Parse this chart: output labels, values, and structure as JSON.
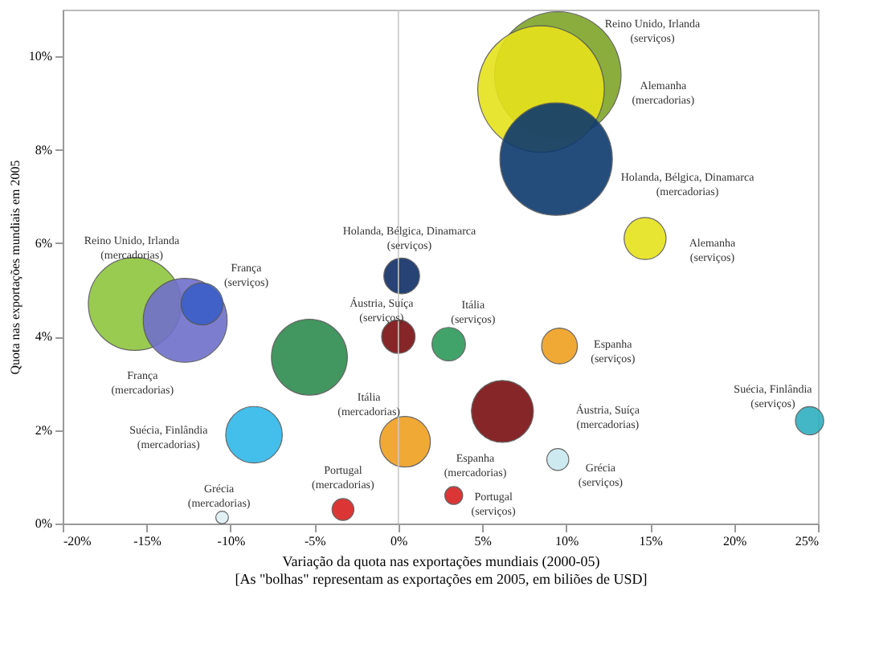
{
  "chart_data": {
    "type": "bubble",
    "xlabel": "Variação da quota nas exportações mundiais (2000-05)\n[As \"bolhas\" representam as exportações em 2005, em biliões de USD]",
    "ylabel": "Quota nas exportações mundiais em 2005",
    "xlim": [
      -20,
      25
    ],
    "ylim": [
      0,
      11
    ],
    "xticks": [
      {
        "value": -20,
        "label": "-20%"
      },
      {
        "value": -15,
        "label": "-15%"
      },
      {
        "value": -10,
        "label": "-10%"
      },
      {
        "value": -5,
        "label": "-5%"
      },
      {
        "value": 0,
        "label": "0%"
      },
      {
        "value": 5,
        "label": "5%"
      },
      {
        "value": 10,
        "label": "10%"
      },
      {
        "value": 15,
        "label": "15%"
      },
      {
        "value": 20,
        "label": "20%"
      },
      {
        "value": 25,
        "label": "25%"
      }
    ],
    "yticks": [
      {
        "value": 0,
        "label": "0%"
      },
      {
        "value": 2,
        "label": "2%"
      },
      {
        "value": 4,
        "label": "4%"
      },
      {
        "value": 6,
        "label": "6%"
      },
      {
        "value": 8,
        "label": "8%"
      },
      {
        "value": 10,
        "label": "10%"
      }
    ],
    "grid": false,
    "ref_lines": [
      {
        "axis": "x",
        "value": 0,
        "color": "#c8c8c8"
      }
    ],
    "x": [
      9.5,
      8.5,
      9.4,
      14.7,
      0.2,
      -15.7,
      -12.7,
      -11.7,
      -5.3,
      0.0,
      3.0,
      9.6,
      6.2,
      0.4,
      -8.6,
      24.5,
      9.5,
      3.3,
      -3.3,
      -10.5
    ],
    "values": [
      9.6,
      9.3,
      7.8,
      6.1,
      5.3,
      4.7,
      4.35,
      4.7,
      3.56,
      4.0,
      3.84,
      3.8,
      2.4,
      1.75,
      1.9,
      2.2,
      1.37,
      0.6,
      0.3,
      0.13
    ],
    "sizes": [
      1,
      1,
      0.79,
      0.11,
      0.08,
      0.54,
      0.44,
      0.11,
      0.36,
      0.07,
      0.07,
      0.08,
      0.24,
      0.16,
      0.2,
      0.05,
      0.03,
      0.02,
      0.03,
      0.01
    ],
    "colors": [
      "#7fa52a",
      "#e6e21c",
      "#0d3a6e",
      "#e6e21c",
      "#102e66",
      "#8ec63f",
      "#7070cc",
      "#3b5fc8",
      "#2e8b4e",
      "#7a0f12",
      "#2e9a5a",
      "#f0a020",
      "#7a0f12",
      "#f0a020",
      "#30b8e8",
      "#30b0c0",
      "#c8e8f0",
      "#d82020",
      "#d82020",
      "#e0f0f4"
    ],
    "annotations": [
      "Reino Unido, Irlanda (serviços)",
      "Alemanha (mercadorias)",
      "Holanda, Bélgica, Dinamarca (mercadorias)",
      "Alemanha (serviços)",
      "Holanda, Bélgica, Dinamarca (serviços)",
      "Reino Unido, Irlanda (mercadorias)",
      "França (mercadorias)",
      "França (serviços)",
      "Itália (mercadorias)",
      "Áustria, Suíça (serviços)",
      "Itália (serviços)",
      "Espanha (serviços)",
      "Áustria, Suíça (mercadorias)",
      "Espanha (mercadorias)",
      "Suécia, Finlândia (mercadorias)",
      "Suécia, Finlândia (serviços)",
      "Grécia (serviços)",
      "Portugal (serviços)",
      "Portugal (mercadorias)",
      "Grécia (mercadorias)"
    ]
  }
}
